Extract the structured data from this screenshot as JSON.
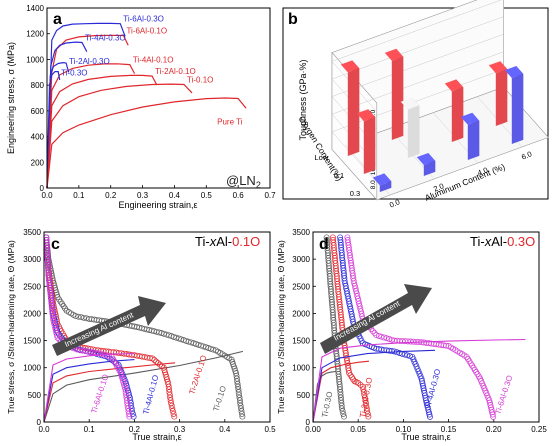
{
  "chart_data": [
    {
      "panel": "a",
      "type": "line",
      "xlabel": "Engineering strain,ε",
      "ylabel": "Engineering stress, σ (MPa)",
      "xlim": [
        0.0,
        0.7
      ],
      "ylim": [
        0,
        1400
      ],
      "xticks": [
        "0.0",
        "0.1",
        "0.2",
        "0.3",
        "0.4",
        "0.5",
        "0.6",
        "0.7"
      ],
      "yticks": [
        "0",
        "200",
        "400",
        "600",
        "800",
        "1000",
        "1200",
        "1400"
      ],
      "annotation": "@LN",
      "annotation_sub": "2",
      "series": [
        {
          "name": "Ti-6Al-0.3O",
          "color": "#2b2bd6",
          "x": [
            0.0,
            0.015,
            0.03,
            0.05,
            0.08,
            0.12,
            0.16,
            0.2,
            0.23,
            0.245
          ],
          "y": [
            0,
            1150,
            1225,
            1260,
            1275,
            1278,
            1280,
            1280,
            1278,
            1180
          ]
        },
        {
          "name": "Ti-6Al-0.1O",
          "color": "#e0262b",
          "x": [
            0.0,
            0.015,
            0.03,
            0.06,
            0.1,
            0.15,
            0.2,
            0.24,
            0.255
          ],
          "y": [
            0,
            900,
            1080,
            1150,
            1175,
            1185,
            1188,
            1186,
            1110
          ]
        },
        {
          "name": "Ti-4Al-0.3O",
          "color": "#2b2bd6",
          "x": [
            0.0,
            0.012,
            0.025,
            0.04,
            0.06,
            0.09,
            0.11,
            0.125
          ],
          "y": [
            0,
            950,
            1070,
            1110,
            1128,
            1135,
            1132,
            1060
          ]
        },
        {
          "name": "Ti-4Al-0.1O",
          "color": "#e0262b",
          "x": [
            0.0,
            0.015,
            0.04,
            0.08,
            0.13,
            0.18,
            0.22,
            0.26,
            0.275
          ],
          "y": [
            0,
            760,
            880,
            930,
            955,
            965,
            966,
            960,
            890
          ]
        },
        {
          "name": "Ti-2Al-0.3O",
          "color": "#2b2bd6",
          "x": [
            0.0,
            0.01,
            0.02,
            0.035,
            0.05,
            0.06,
            0.068
          ],
          "y": [
            0,
            870,
            945,
            968,
            975,
            972,
            900
          ]
        },
        {
          "name": "Ti-2Al-0.1O",
          "color": "#e0262b",
          "x": [
            0.0,
            0.015,
            0.04,
            0.08,
            0.13,
            0.2,
            0.26,
            0.3,
            0.33,
            0.345
          ],
          "y": [
            0,
            640,
            750,
            810,
            845,
            868,
            876,
            876,
            870,
            800
          ]
        },
        {
          "name": "Ti-0.3O",
          "color": "#2b2bd6",
          "x": [
            0.0,
            0.008,
            0.015,
            0.025,
            0.035,
            0.04
          ],
          "y": [
            0,
            800,
            880,
            905,
            905,
            840
          ]
        },
        {
          "name": "Ti-0.1O",
          "color": "#e0262b",
          "x": [
            0.0,
            0.015,
            0.05,
            0.1,
            0.17,
            0.25,
            0.33,
            0.39,
            0.43,
            0.455
          ],
          "y": [
            0,
            520,
            640,
            710,
            760,
            790,
            805,
            808,
            805,
            740
          ]
        },
        {
          "name": "Pure Ti",
          "color": "#e0262b",
          "x": [
            0.0,
            0.015,
            0.05,
            0.1,
            0.2,
            0.3,
            0.4,
            0.5,
            0.56,
            0.6,
            0.625
          ],
          "y": [
            0,
            340,
            430,
            490,
            570,
            630,
            670,
            695,
            700,
            696,
            620
          ]
        }
      ]
    },
    {
      "panel": "b",
      "type": "bar",
      "chart_kind": "3d-bar",
      "zlabel": "Toughness (GPa·%)",
      "ylabel": "Oxygen Content(%)",
      "xlabel": "Aluminum Content (%)",
      "zticks": [
        "8.0",
        "16.0",
        "24.0",
        "32.0",
        "40.0"
      ],
      "oxygen_ticks": [
        "Low",
        "0.1",
        "0.3"
      ],
      "aluminum_ticks": [
        "0.0",
        "2.0",
        "4.0",
        "6.0"
      ],
      "bars": [
        {
          "oxygen": "Low",
          "aluminum": "0.0",
          "value": 38,
          "color": "#e2484e"
        },
        {
          "oxygen": "Low",
          "aluminum": "2.0",
          "value": 36,
          "color": "#e2484e"
        },
        {
          "oxygen": "0.1",
          "aluminum": "0.0",
          "value": 24,
          "color": "#e2484e"
        },
        {
          "oxygen": "0.1",
          "aluminum": "2.0",
          "value": 22,
          "color": "#dcdcdc"
        },
        {
          "oxygen": "0.1",
          "aluminum": "4.0",
          "value": 23,
          "color": "#e2484e"
        },
        {
          "oxygen": "0.1",
          "aluminum": "6.0",
          "value": 24,
          "color": "#e2484e"
        },
        {
          "oxygen": "0.3",
          "aluminum": "0.0",
          "value": 3,
          "color": "#5a5ae6"
        },
        {
          "oxygen": "0.3",
          "aluminum": "2.0",
          "value": 5,
          "color": "#5a5ae6"
        },
        {
          "oxygen": "0.3",
          "aluminum": "4.0",
          "value": 16,
          "color": "#5a5ae6"
        },
        {
          "oxygen": "0.3",
          "aluminum": "6.0",
          "value": 30,
          "color": "#5a5ae6"
        }
      ]
    },
    {
      "panel": "c",
      "type": "line",
      "title_prefix": "Ti-",
      "title_x": "x",
      "title_mid": "Al-",
      "title_suffix": "0.1O",
      "xlabel": "True strain,ε",
      "ylabel": "True stress, σ /Strain-hardening rate, Θ (MPa)",
      "xlim": [
        0.0,
        0.5
      ],
      "ylim": [
        0,
        3500
      ],
      "xticks": [
        "0.0",
        "0.1",
        "0.2",
        "0.3",
        "0.4",
        "0.5"
      ],
      "yticks": [
        "0",
        "500",
        "1000",
        "1500",
        "2000",
        "2500",
        "3000",
        "3500"
      ],
      "arrow_label": "Increasing Al content",
      "series": [
        {
          "name": "Ti-0.1O",
          "color": "#5a5a5a",
          "stress": {
            "x": [
              0.0,
              0.02,
              0.05,
              0.1,
              0.2,
              0.3,
              0.38,
              0.44
            ],
            "y": [
              0,
              520,
              680,
              780,
              900,
              1040,
              1180,
              1300
            ]
          },
          "theta": {
            "x": [
              0.005,
              0.01,
              0.02,
              0.03,
              0.05,
              0.07,
              0.1,
              0.15,
              0.2,
              0.26,
              0.32,
              0.38,
              0.415,
              0.425,
              0.43,
              0.435,
              0.44
            ],
            "y": [
              3400,
              3000,
              2600,
              2300,
              2050,
              1950,
              1900,
              1840,
              1760,
              1640,
              1480,
              1320,
              1150,
              900,
              600,
              300,
              50
            ]
          }
        },
        {
          "name": "Ti-2Al-0.1O",
          "color": "#e0262b",
          "stress": {
            "x": [
              0.0,
              0.02,
              0.05,
              0.1,
              0.18,
              0.25,
              0.29
            ],
            "y": [
              0,
              720,
              850,
              930,
              1000,
              1060,
              1090
            ]
          },
          "theta": {
            "x": [
              0.005,
              0.01,
              0.02,
              0.03,
              0.05,
              0.08,
              0.12,
              0.16,
              0.2,
              0.24,
              0.265,
              0.275,
              0.28,
              0.285,
              0.29
            ],
            "y": [
              3400,
              2800,
              2200,
              1800,
              1500,
              1380,
              1320,
              1280,
              1230,
              1170,
              1000,
              700,
              400,
              200,
              50
            ]
          }
        },
        {
          "name": "Ti-4Al-0.1O",
          "color": "#2b2bd6",
          "stress": {
            "x": [
              0.0,
              0.02,
              0.05,
              0.1,
              0.15,
              0.2
            ],
            "y": [
              0,
              880,
              1000,
              1070,
              1120,
              1150
            ]
          },
          "theta": {
            "x": [
              0.005,
              0.01,
              0.02,
              0.03,
              0.05,
              0.08,
              0.11,
              0.14,
              0.165,
              0.18,
              0.19,
              0.195,
              0.2
            ],
            "y": [
              3400,
              2700,
              2000,
              1650,
              1430,
              1330,
              1270,
              1200,
              1050,
              750,
              450,
              200,
              50
            ]
          }
        },
        {
          "name": "Ti-6Al-0.1O",
          "color": "#d63ad6",
          "stress": {
            "x": [
              0.0,
              0.02,
              0.05,
              0.1,
              0.15,
              0.2
            ],
            "y": [
              0,
              1050,
              1160,
              1220,
              1250,
              1260
            ]
          },
          "theta": {
            "x": [
              0.005,
              0.01,
              0.02,
              0.03,
              0.05,
              0.08,
              0.12,
              0.15,
              0.17,
              0.18,
              0.185,
              0.19
            ],
            "y": [
              3400,
              2700,
              1900,
              1550,
              1400,
              1320,
              1270,
              1200,
              900,
              600,
              300,
              50
            ]
          }
        }
      ]
    },
    {
      "panel": "d",
      "type": "line",
      "title_prefix": "Ti-",
      "title_x": "x",
      "title_mid": "Al-",
      "title_suffix": "0.3O",
      "xlabel": "True strain,ε",
      "ylabel": "True stress, σ /Strain-hardening rate, Θ (MPa)",
      "xlim": [
        0.0,
        0.25
      ],
      "ylim": [
        0,
        3500
      ],
      "xticks": [
        "0.00",
        "0.05",
        "0.10",
        "0.15",
        "0.20",
        "0.25"
      ],
      "yticks": [
        "0",
        "500",
        "1000",
        "1500",
        "2000",
        "2500",
        "3000",
        "3500"
      ],
      "arrow_label": "Increasing Al content",
      "series": [
        {
          "name": "Ti-0.3O",
          "color": "#5a5a5a",
          "stress": {
            "x": [
              0.0,
              0.005,
              0.01,
              0.015,
              0.02,
              0.025
            ],
            "y": [
              0,
              700,
              850,
              900,
              920,
              930
            ]
          },
          "theta": {
            "x": [
              0.015,
              0.02,
              0.025,
              0.03,
              0.032,
              0.035
            ],
            "y": [
              3400,
              2400,
              1400,
              600,
              250,
              50
            ]
          }
        },
        {
          "name": "Ti-2Al-0.3O",
          "color": "#e0262b",
          "stress": {
            "x": [
              0.0,
              0.01,
              0.02,
              0.035,
              0.05,
              0.062
            ],
            "y": [
              0,
              900,
              1000,
              1060,
              1100,
              1120
            ]
          },
          "theta": {
            "x": [
              0.022,
              0.028,
              0.034,
              0.04,
              0.046,
              0.05,
              0.055,
              0.058,
              0.06,
              0.062
            ],
            "y": [
              3400,
              2400,
              1500,
              900,
              750,
              720,
              650,
              400,
              200,
              50
            ]
          }
        },
        {
          "name": "Ti-4Al-0.3O",
          "color": "#2b2bd6",
          "stress": {
            "x": [
              0.0,
              0.01,
              0.03,
              0.06,
              0.1,
              0.135
            ],
            "y": [
              0,
              1000,
              1180,
              1260,
              1300,
              1320
            ]
          },
          "theta": {
            "x": [
              0.03,
              0.035,
              0.045,
              0.055,
              0.07,
              0.09,
              0.11,
              0.12,
              0.125,
              0.13
            ],
            "y": [
              3400,
              2600,
              1800,
              1450,
              1350,
              1300,
              1200,
              800,
              400,
              50
            ]
          }
        },
        {
          "name": "Ti-6Al-0.3O",
          "color": "#d63ad6",
          "stress": {
            "x": [
              0.0,
              0.01,
              0.03,
              0.06,
              0.1,
              0.15,
              0.2,
              0.235
            ],
            "y": [
              0,
              1200,
              1360,
              1420,
              1460,
              1490,
              1510,
              1520
            ]
          },
          "theta": {
            "x": [
              0.038,
              0.045,
              0.055,
              0.07,
              0.09,
              0.12,
              0.15,
              0.17,
              0.185,
              0.195,
              0.2
            ],
            "y": [
              3400,
              2600,
              1900,
              1600,
              1500,
              1470,
              1400,
              1200,
              800,
              400,
              50
            ]
          }
        }
      ]
    }
  ]
}
